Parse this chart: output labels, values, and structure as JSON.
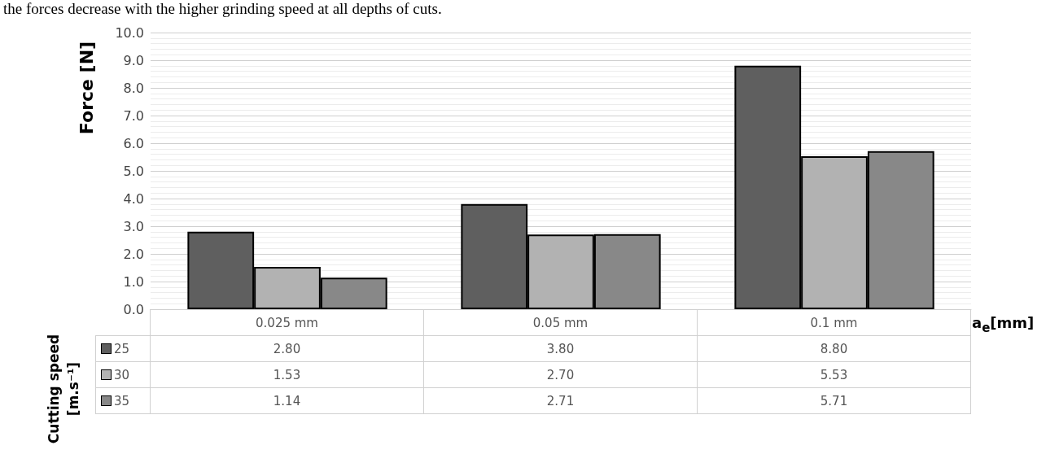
{
  "chart_data": {
    "type": "bar",
    "annotations": [
      "the forces decrease with the higher grinding speed at all depths of cuts."
    ],
    "ylabel": "Force [N]",
    "xlabel": "a$_{e}$[mm]",
    "legend_title": "Cutting speed [m.s⁻¹]",
    "categories": [
      "0.025 mm",
      "0.05 mm",
      "0.1 mm"
    ],
    "series": [
      {
        "name": "25",
        "color": "#5f5f5f",
        "values": [
          2.8,
          3.8,
          8.8
        ],
        "value_labels": [
          "2.80",
          "3.80",
          "8.80"
        ]
      },
      {
        "name": "30",
        "color": "#b2b2b2",
        "values": [
          1.53,
          2.7,
          5.53
        ],
        "value_labels": [
          "1.53",
          "2.70",
          "5.53"
        ]
      },
      {
        "name": "35",
        "color": "#888888",
        "values": [
          1.14,
          2.71,
          5.71
        ],
        "value_labels": [
          "1.14",
          "2.71",
          "5.71"
        ]
      }
    ],
    "ylim": [
      0,
      10
    ],
    "yticks": [
      {
        "value": 0,
        "label": "0.0"
      },
      {
        "value": 1,
        "label": "1.0"
      },
      {
        "value": 2,
        "label": "2.0"
      },
      {
        "value": 3,
        "label": "3.0"
      },
      {
        "value": 4,
        "label": "4.0"
      },
      {
        "value": 5,
        "label": "5.0"
      },
      {
        "value": 6,
        "label": "6.0"
      },
      {
        "value": 7,
        "label": "7.0"
      },
      {
        "value": 8,
        "label": "8.0"
      },
      {
        "value": 9,
        "label": "9.0"
      },
      {
        "value": 10,
        "label": "10.0"
      }
    ],
    "grid": true,
    "legend": "bottom"
  }
}
